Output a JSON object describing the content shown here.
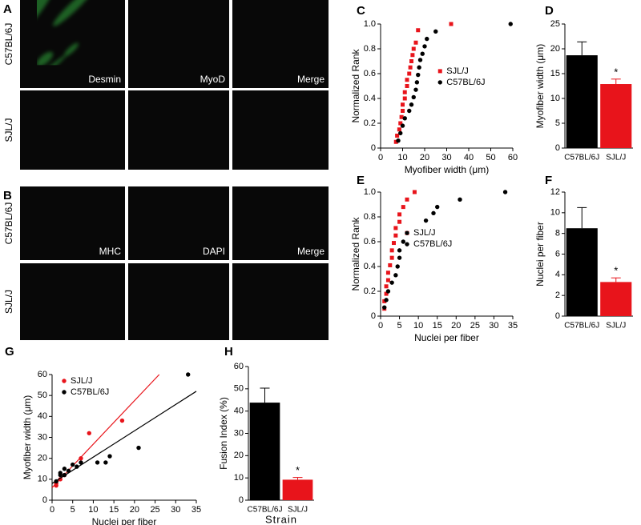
{
  "panels": [
    {
      "letter": "A",
      "rows": [
        "C57BL/6J",
        "SJL/J"
      ],
      "columns": [
        "Desmin",
        "MyoD",
        "Merge"
      ]
    },
    {
      "letter": "B",
      "rows": [
        "C57BL/6J",
        "SJL/J"
      ],
      "columns": [
        "MHC",
        "DAPI",
        "Merge"
      ]
    }
  ],
  "chart_data": [
    {
      "type": "scatter",
      "panel": "C",
      "xlabel": "Myofiber width (μm)",
      "ylabel": "Normalized Rank",
      "xlim": [
        0,
        60
      ],
      "xticks": [
        0,
        10,
        20,
        30,
        40,
        50,
        60
      ],
      "ylim": [
        0,
        1
      ],
      "yticks": [
        0,
        0.2,
        0.4,
        0.6,
        0.8,
        {
          "value": 1,
          "label": "1.0"
        }
      ],
      "legend": "center right",
      "series": [
        {
          "name": "SJL/J",
          "color": "#e8141b",
          "marker": "square",
          "x": [
            7,
            7.5,
            8.5,
            9,
            9.5,
            10,
            10,
            11,
            11,
            12,
            12,
            13,
            13.5,
            14,
            14.5,
            15,
            16,
            17,
            32
          ],
          "values": [
            0.05,
            0.1,
            0.15,
            0.2,
            0.25,
            0.3,
            0.35,
            0.4,
            0.45,
            0.5,
            0.55,
            0.6,
            0.65,
            0.7,
            0.75,
            0.8,
            0.85,
            0.95,
            1
          ]
        },
        {
          "name": "C57BL/6J",
          "color": "#000000",
          "marker": "circle",
          "x": [
            8,
            9,
            10,
            11,
            13,
            14,
            15,
            16,
            16.5,
            17,
            17.5,
            18,
            19,
            20,
            21,
            25,
            59
          ],
          "values": [
            0.06,
            0.12,
            0.18,
            0.24,
            0.3,
            0.35,
            0.41,
            0.47,
            0.53,
            0.59,
            0.65,
            0.71,
            0.76,
            0.82,
            0.88,
            0.94,
            1
          ]
        }
      ]
    },
    {
      "type": "bar",
      "panel": "D",
      "ylabel": "Myofiber width (μm)",
      "categories": [
        "C57BL/6J",
        "SJL/J"
      ],
      "values": [
        18.7,
        12.9
      ],
      "errors": [
        2.7,
        1.0
      ],
      "colors": [
        "#000000",
        "#e8141b"
      ],
      "ylim": [
        0,
        25
      ],
      "yticks": [
        0,
        5,
        10,
        15,
        20,
        25
      ],
      "annotation": "*"
    },
    {
      "type": "scatter",
      "panel": "E",
      "xlabel": "Nuclei per fiber",
      "ylabel": "Normalized Rank",
      "xlim": [
        0,
        35
      ],
      "xticks": [
        0,
        5,
        10,
        15,
        20,
        25,
        30,
        35
      ],
      "ylim": [
        0,
        1
      ],
      "yticks": [
        0,
        0.2,
        0.4,
        0.6,
        0.8,
        {
          "value": 1,
          "label": "1.0"
        }
      ],
      "legend": "center",
      "series": [
        {
          "name": "SJL/J",
          "color": "#e8141b",
          "marker": "square",
          "x": [
            1,
            1,
            1.5,
            1.5,
            2,
            2,
            2.5,
            3,
            3,
            3.5,
            4,
            4,
            5,
            5,
            6,
            7,
            9
          ],
          "values": [
            0.06,
            0.12,
            0.18,
            0.24,
            0.29,
            0.35,
            0.41,
            0.47,
            0.53,
            0.59,
            0.65,
            0.71,
            0.76,
            0.82,
            0.88,
            0.94,
            1
          ]
        },
        {
          "name": "C57BL/6J",
          "color": "#000000",
          "marker": "circle",
          "x": [
            1,
            1.5,
            2,
            3,
            4,
            4.5,
            5,
            5,
            6,
            7,
            12,
            14,
            15,
            21,
            33
          ],
          "values": [
            0.07,
            0.13,
            0.2,
            0.27,
            0.33,
            0.4,
            0.47,
            0.53,
            0.6,
            0.67,
            0.77,
            0.83,
            0.88,
            0.94,
            1
          ]
        }
      ]
    },
    {
      "type": "bar",
      "panel": "F",
      "ylabel": "Nuclei per fiber",
      "categories": [
        "C57BL/6J",
        "SJL/J"
      ],
      "values": [
        8.5,
        3.3
      ],
      "errors": [
        2.0,
        0.4
      ],
      "colors": [
        "#000000",
        "#e8141b"
      ],
      "ylim": [
        0,
        12
      ],
      "yticks": [
        0,
        2,
        4,
        6,
        8,
        10,
        12
      ],
      "annotation": "*"
    },
    {
      "type": "scatter",
      "panel": "G",
      "xlabel": "Nuclei per fiber",
      "ylabel": "Myofiber width (μm)",
      "xlim": [
        0,
        35
      ],
      "xticks": [
        0,
        5,
        10,
        15,
        20,
        25,
        30,
        35
      ],
      "ylim": [
        0,
        60
      ],
      "yticks": [
        0,
        10,
        20,
        30,
        40,
        50,
        60
      ],
      "legend": "upper left",
      "series": [
        {
          "name": "SJL/J",
          "color": "#e8141b",
          "marker": "circle",
          "x": [
            1,
            1,
            2,
            3,
            7,
            9,
            17
          ],
          "values": [
            8,
            7,
            10,
            12,
            20,
            32,
            38
          ],
          "fit": {
            "x": [
              0,
              26
            ],
            "values": [
              6,
              60
            ]
          }
        },
        {
          "name": "C57BL/6J",
          "color": "#000000",
          "marker": "circle",
          "x": [
            1,
            2,
            2,
            3,
            3,
            4,
            5,
            6,
            7,
            11,
            13,
            14,
            21,
            33
          ],
          "values": [
            9,
            12,
            13,
            12,
            15,
            14,
            17,
            16,
            18,
            18,
            18,
            21,
            25,
            60
          ],
          "fit": {
            "x": [
              0,
              35
            ],
            "values": [
              8,
              52
            ]
          }
        }
      ]
    },
    {
      "type": "bar",
      "panel": "H",
      "ylabel": "Fusion Index (%)",
      "xlabel": "Strain",
      "categories": [
        "C57BL/6J",
        "SJL/J"
      ],
      "values": [
        43.8,
        9.2
      ],
      "errors": [
        6.5,
        1.0
      ],
      "colors": [
        "#000000",
        "#e8141b"
      ],
      "ylim": [
        0,
        60
      ],
      "yticks": [
        0,
        10,
        20,
        30,
        40,
        50,
        60
      ],
      "annotation": "*"
    }
  ]
}
